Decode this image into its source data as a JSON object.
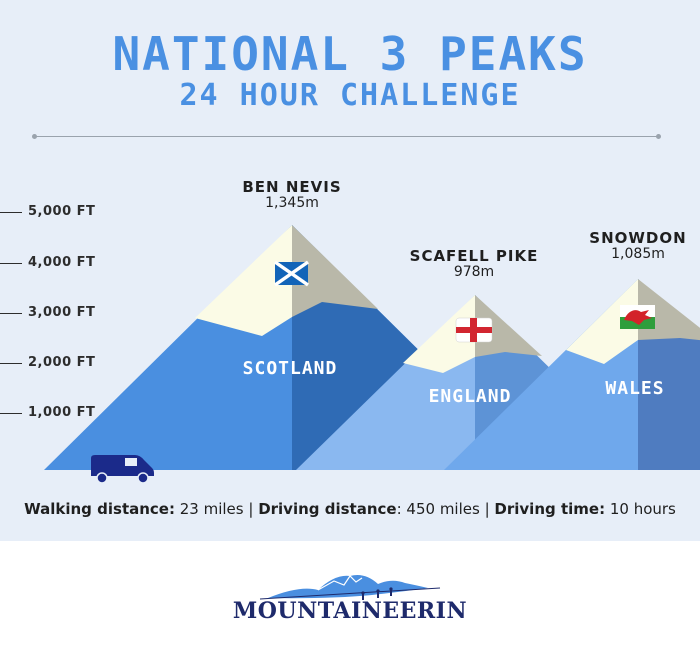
{
  "title": "NATIONAL 3 PEAKS",
  "subtitle": "24 HOUR CHALLENGE",
  "y_axis": {
    "ticks": [
      {
        "label": "5,000 FT",
        "value": 5000
      },
      {
        "label": "4,000 FT",
        "value": 4000
      },
      {
        "label": "3,000 FT",
        "value": 3000
      },
      {
        "label": "2,000 FT",
        "value": 2000
      },
      {
        "label": "1,000 FT",
        "value": 1000
      }
    ]
  },
  "peaks": [
    {
      "name": "BEN NEVIS",
      "height": "1,345m",
      "country": "SCOTLAND",
      "flag": "scotland-flag-icon"
    },
    {
      "name": "SCAFELL PIKE",
      "height": "978m",
      "country": "ENGLAND",
      "flag": "england-flag-icon"
    },
    {
      "name": "SNOWDON",
      "height": "1,085m",
      "country": "WALES",
      "flag": "wales-flag-icon"
    }
  ],
  "stats": {
    "walking_label": "Walking distance:",
    "walking_value": " 23 miles | ",
    "driving_label": "Driving distance",
    "driving_value": ": 450 miles | ",
    "time_label": "Driving time:",
    "time_value": " 10 hours"
  },
  "logo": {
    "text": "MOUNTAINEERIN"
  },
  "colors": {
    "background": "#e7eef8",
    "title": "#4a90e2",
    "scotland": "#4a8fe0",
    "england": "#8ab8f0",
    "wales": "#6fa8ec",
    "snow": "#fbfbe6",
    "rock": "#b9b8a9",
    "van": "#1b2a8a"
  }
}
